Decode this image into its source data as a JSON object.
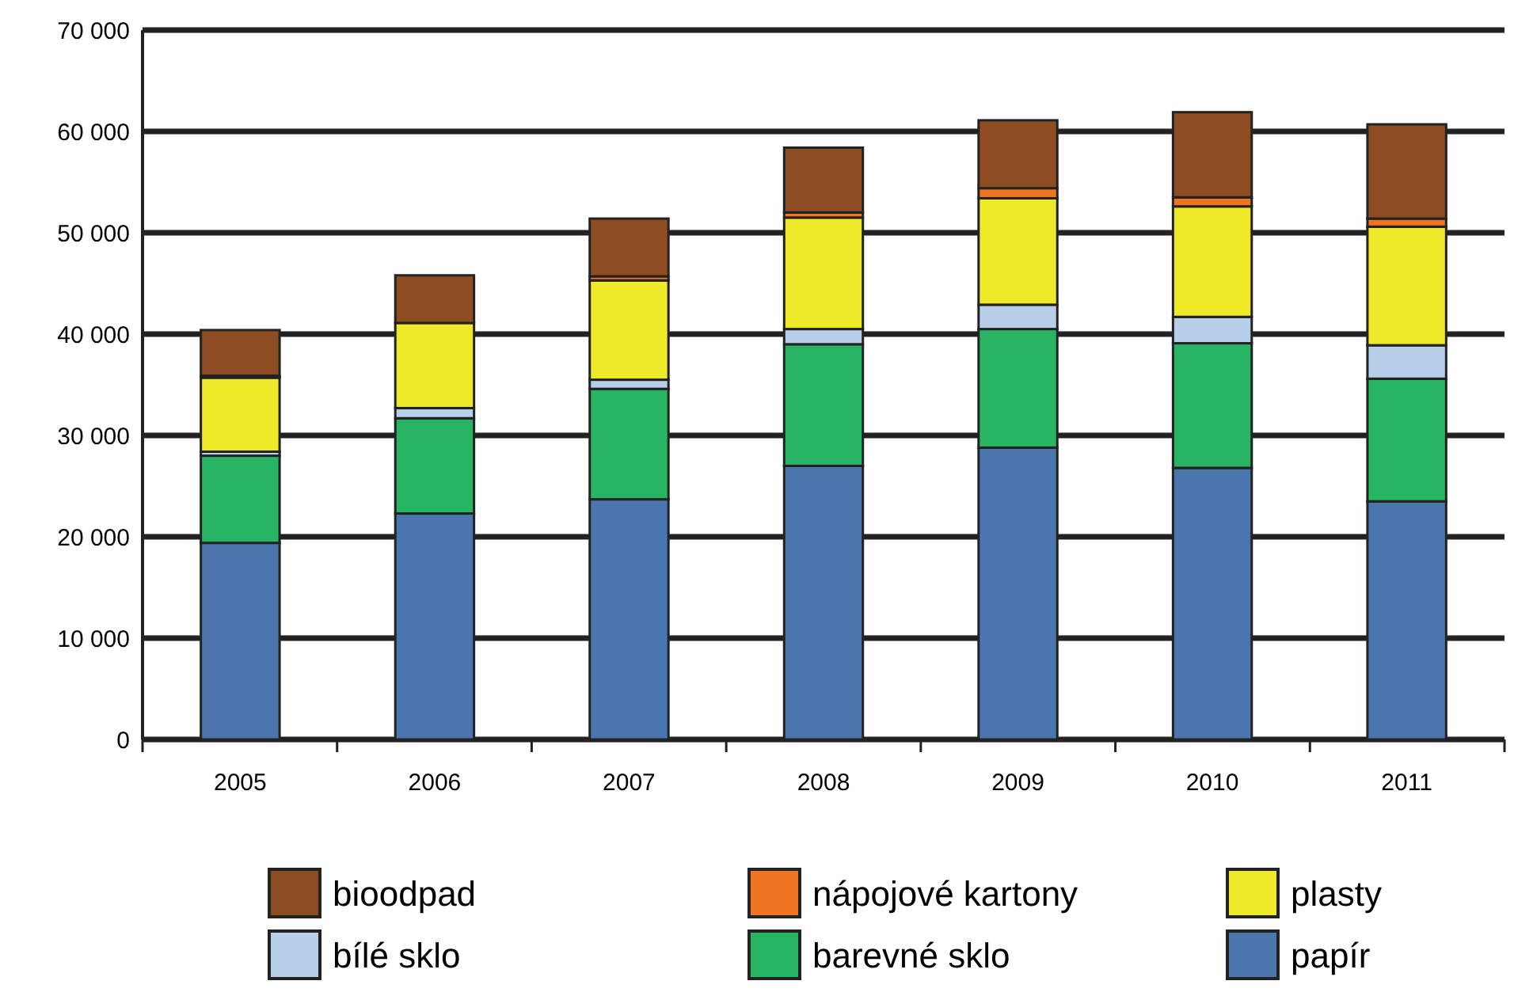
{
  "chart_data": {
    "type": "bar",
    "stacked": true,
    "categories": [
      "2005",
      "2006",
      "2007",
      "2008",
      "2009",
      "2010",
      "2011"
    ],
    "series": [
      {
        "name": "papír",
        "color": "#4a76ad",
        "values": [
          19400,
          22300,
          23700,
          27000,
          28800,
          26800,
          23500
        ]
      },
      {
        "name": "barevné sklo",
        "color": "#27b463",
        "values": [
          8600,
          9400,
          10900,
          12000,
          11700,
          12300,
          12100
        ]
      },
      {
        "name": "bílé sklo",
        "color": "#b8cfea",
        "values": [
          400,
          1000,
          900,
          1500,
          2400,
          2600,
          3300
        ]
      },
      {
        "name": "plasty",
        "color": "#eeea2a",
        "values": [
          7300,
          8400,
          9800,
          11000,
          10500,
          10900,
          11700
        ]
      },
      {
        "name": "nápojové kartony",
        "color": "#ef7422",
        "values": [
          200,
          null,
          400,
          500,
          1000,
          900,
          800
        ]
      },
      {
        "name": "bioodpad",
        "color": "#8e4c22",
        "values": [
          4500,
          4700,
          5700,
          6400,
          6700,
          8400,
          9300
        ]
      }
    ],
    "ylim": [
      0,
      70000
    ],
    "yticks": [
      0,
      {
        "value": 10000,
        "label": "10 000"
      },
      {
        "value": 20000,
        "label": "20 000"
      },
      {
        "value": 30000,
        "label": "30 000"
      },
      {
        "value": 40000,
        "label": "40 000"
      },
      {
        "value": 50000,
        "label": "50 000"
      },
      {
        "value": 60000,
        "label": "60 000"
      },
      {
        "value": 70000,
        "label": "70 000"
      }
    ],
    "grid": "y",
    "legend": "bottom"
  }
}
